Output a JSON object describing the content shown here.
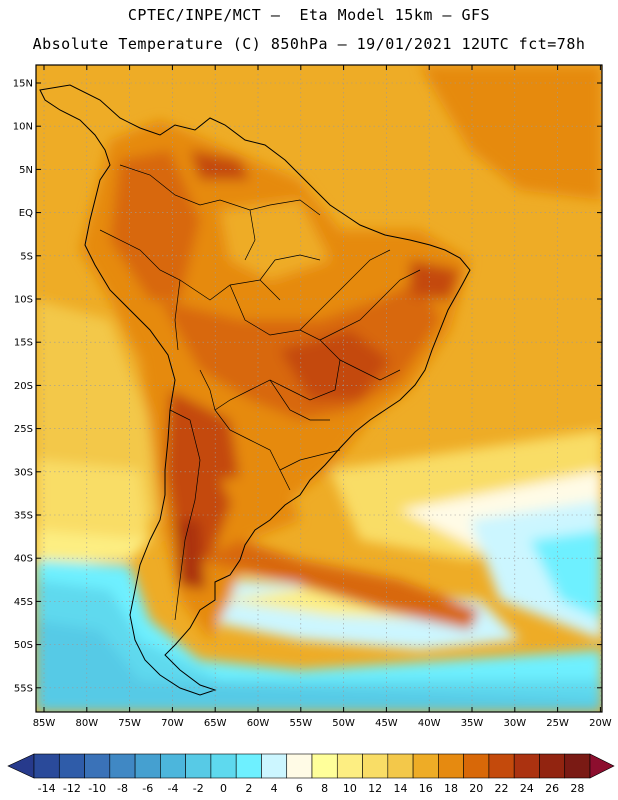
{
  "header": {
    "line1": "CPTEC/INPE/MCT –  Eta Model 15km – GFS",
    "line2": "Absolute Temperature (C) 850hPa – 19/01/2021 12UTC fct=78h"
  },
  "map": {
    "lat_labels": [
      "15N",
      "10N",
      "5N",
      "EQ",
      "5S",
      "10S",
      "15S",
      "20S",
      "25S",
      "30S",
      "35S",
      "40S",
      "45S",
      "50S",
      "55S"
    ],
    "lon_labels": [
      "85W",
      "80W",
      "75W",
      "70W",
      "65W",
      "60W",
      "55W",
      "50W",
      "45W",
      "40W",
      "35W",
      "30W",
      "25W",
      "20W"
    ],
    "gridlines": true
  },
  "colorbar": {
    "labels": [
      "-14",
      "-12",
      "-10",
      "-8",
      "-6",
      "-4",
      "-2",
      "0",
      "2",
      "4",
      "6",
      "8",
      "10",
      "12",
      "14",
      "16",
      "18",
      "20",
      "22",
      "24",
      "26",
      "28"
    ],
    "low_color": "#273a8c",
    "high_color": "#8c0e2e",
    "colors": [
      "#2a4a9a",
      "#2f5ca9",
      "#3a72b8",
      "#4088c4",
      "#45a0d0",
      "#4cb6dc",
      "#57cae6",
      "#5ed9ee",
      "#6ef0ff",
      "#ccf6ff",
      "#fffbe6",
      "#ffff9a",
      "#fdee82",
      "#f9dd66",
      "#f3c84a",
      "#eeac26",
      "#e68a10",
      "#d86808",
      "#c44a0c",
      "#ab3210",
      "#922410",
      "#7a1a14"
    ]
  }
}
